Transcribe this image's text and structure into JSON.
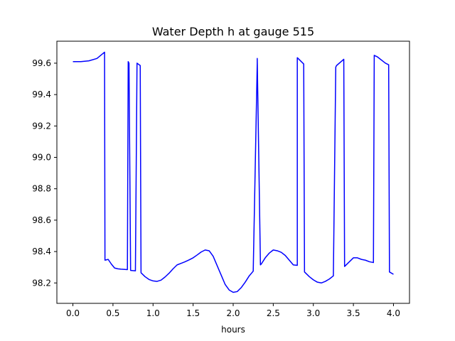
{
  "chart_data": {
    "type": "line",
    "title": "Water Depth h at gauge 515",
    "xlabel": "hours",
    "ylabel": "",
    "xlim": [
      -0.2,
      4.2
    ],
    "ylim": [
      98.07,
      99.74
    ],
    "xticks": [
      0.0,
      0.5,
      1.0,
      1.5,
      2.0,
      2.5,
      3.0,
      3.5,
      4.0
    ],
    "xtick_labels": [
      "0.0",
      "0.5",
      "1.0",
      "1.5",
      "2.0",
      "2.5",
      "3.0",
      "3.5",
      "4.0"
    ],
    "yticks": [
      98.2,
      98.4,
      98.6,
      98.8,
      99.0,
      99.2,
      99.4,
      99.6
    ],
    "ytick_labels": [
      "98.2",
      "98.4",
      "98.6",
      "98.8",
      "99.0",
      "99.2",
      "99.4",
      "99.6"
    ],
    "grid": false,
    "series": [
      {
        "color": "#0000ff",
        "x": [
          0.0,
          0.1,
          0.2,
          0.3,
          0.395,
          0.4,
          0.44,
          0.48,
          0.52,
          0.56,
          0.6,
          0.68,
          0.69,
          0.7,
          0.72,
          0.78,
          0.8,
          0.84,
          0.85,
          0.9,
          0.95,
          1.0,
          1.05,
          1.1,
          1.15,
          1.2,
          1.25,
          1.3,
          1.35,
          1.4,
          1.45,
          1.5,
          1.55,
          1.6,
          1.65,
          1.7,
          1.75,
          1.8,
          1.85,
          1.9,
          1.95,
          2.0,
          2.05,
          2.1,
          2.15,
          2.2,
          2.25,
          2.3,
          2.3,
          2.34,
          2.35,
          2.4,
          2.45,
          2.5,
          2.55,
          2.6,
          2.65,
          2.7,
          2.75,
          2.8,
          2.8,
          2.88,
          2.89,
          2.95,
          3.0,
          3.05,
          3.1,
          3.15,
          3.2,
          3.25,
          3.28,
          3.29,
          3.38,
          3.39,
          3.45,
          3.5,
          3.55,
          3.6,
          3.65,
          3.7,
          3.75,
          3.76,
          3.8,
          3.9,
          3.94,
          3.95,
          4.0
        ],
        "y": [
          99.61,
          99.61,
          99.615,
          99.63,
          99.67,
          98.345,
          98.35,
          98.32,
          98.295,
          98.29,
          98.288,
          98.285,
          99.61,
          99.6,
          98.28,
          98.277,
          99.6,
          99.585,
          98.265,
          98.24,
          98.222,
          98.213,
          98.21,
          98.218,
          98.238,
          98.262,
          98.29,
          98.315,
          98.325,
          98.335,
          98.347,
          98.36,
          98.378,
          98.397,
          98.41,
          98.405,
          98.37,
          98.31,
          98.25,
          98.19,
          98.155,
          98.14,
          98.145,
          98.17,
          98.205,
          98.245,
          98.275,
          99.6,
          99.63,
          98.315,
          98.32,
          98.36,
          98.39,
          98.41,
          98.405,
          98.395,
          98.375,
          98.345,
          98.315,
          98.312,
          99.635,
          99.595,
          98.27,
          98.24,
          98.22,
          98.205,
          98.2,
          98.21,
          98.225,
          98.245,
          99.575,
          99.585,
          99.625,
          98.305,
          98.335,
          98.36,
          98.36,
          98.35,
          98.345,
          98.335,
          98.33,
          99.65,
          99.64,
          99.6,
          99.59,
          98.27,
          98.255
        ]
      }
    ]
  }
}
